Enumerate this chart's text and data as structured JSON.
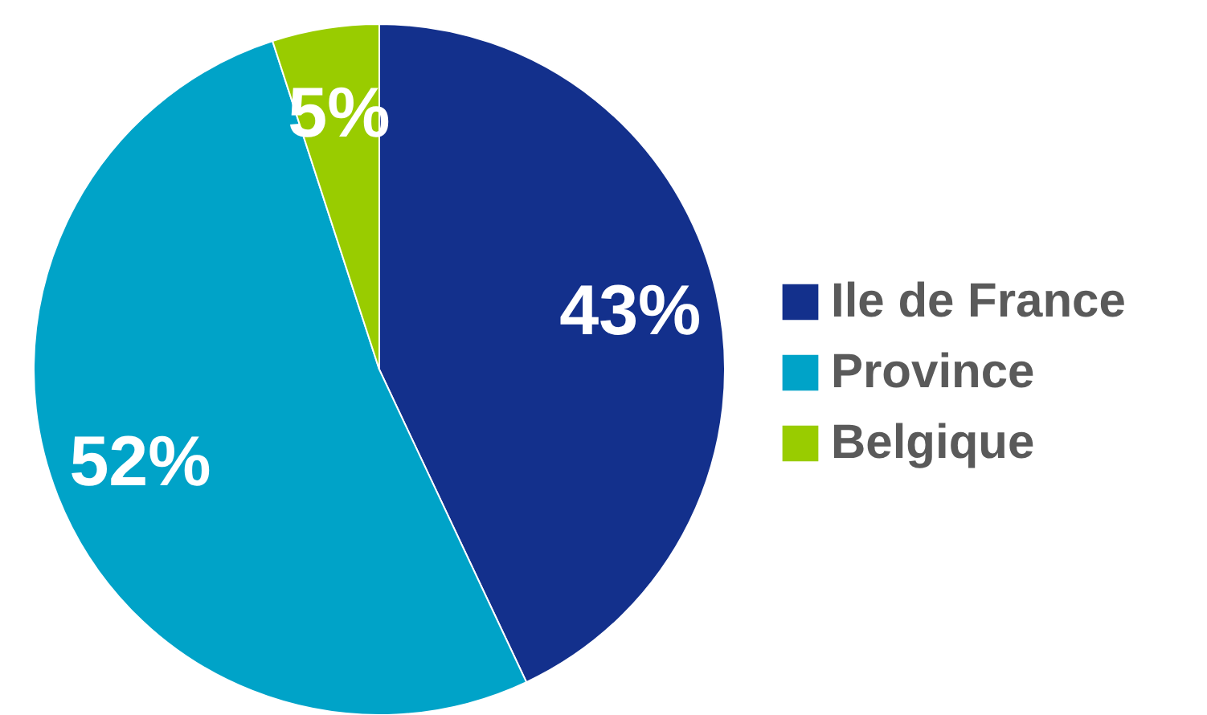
{
  "chart_data": {
    "type": "pie",
    "categories": [
      "Ile de France",
      "Province",
      "Belgique"
    ],
    "values": [
      43,
      52,
      5
    ],
    "colors": [
      "#13308c",
      "#00a3c8",
      "#99cc00"
    ],
    "value_labels": [
      "43%",
      "52%",
      "5%"
    ],
    "legend": "right"
  }
}
